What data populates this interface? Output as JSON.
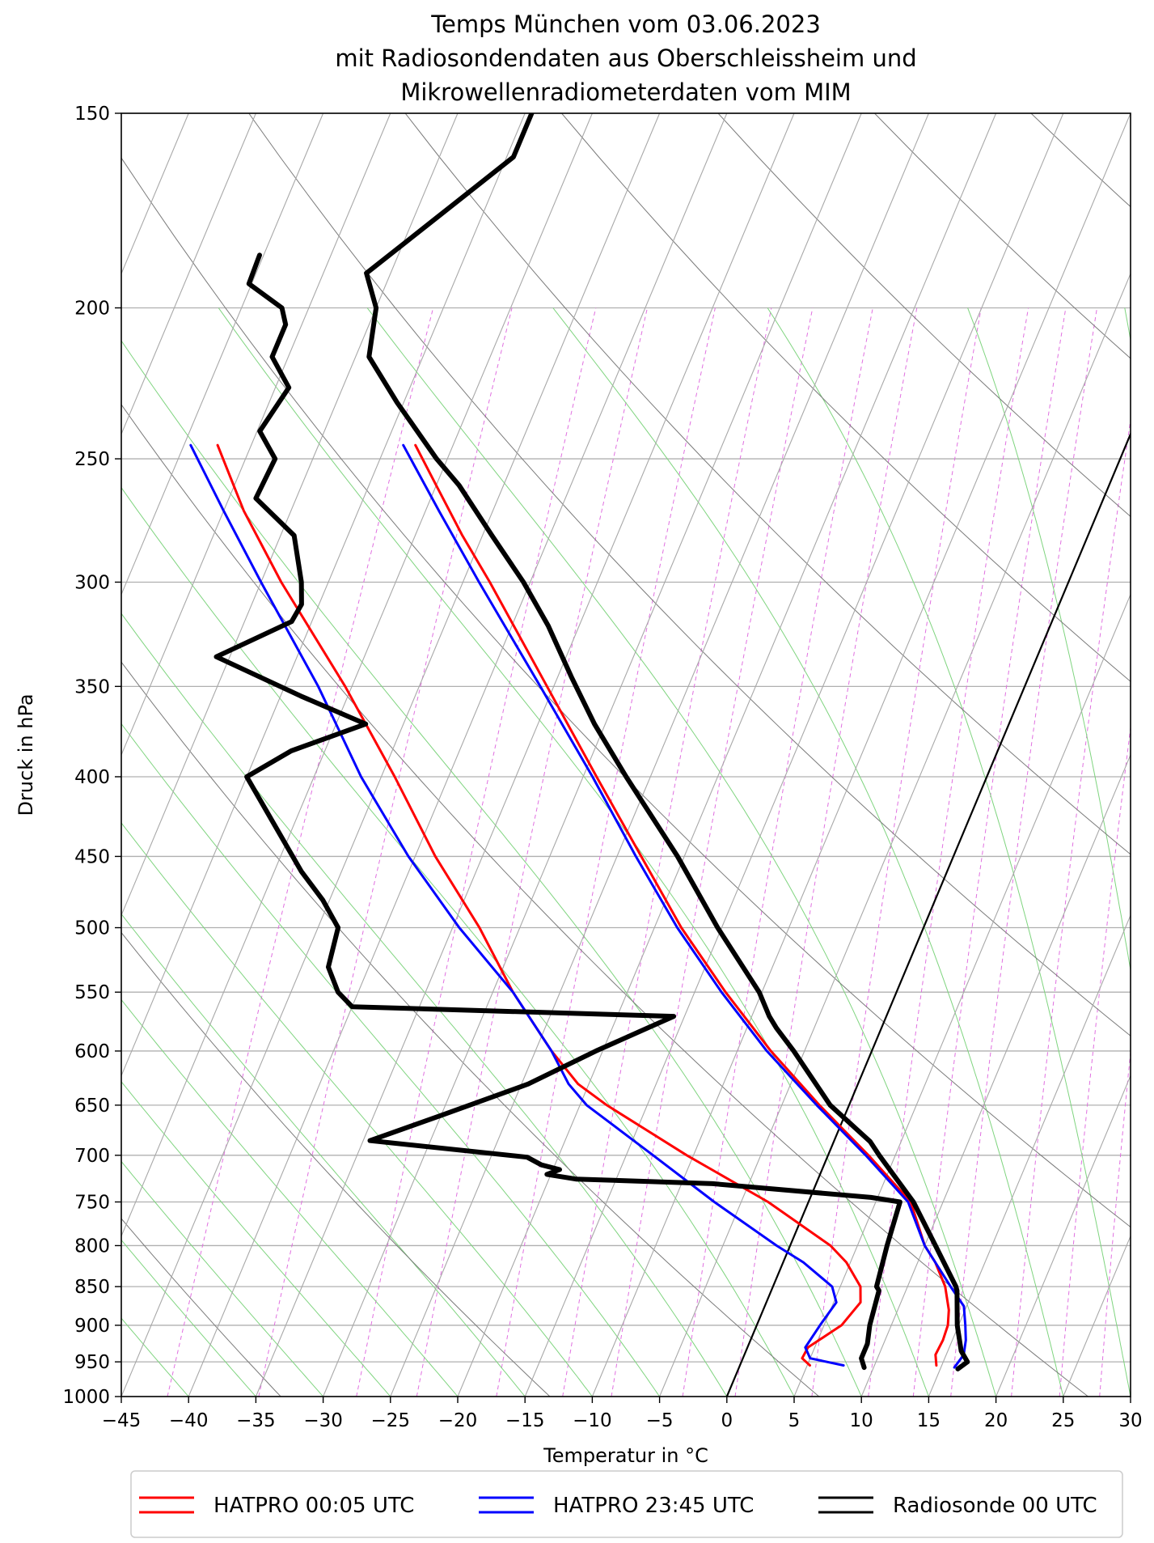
{
  "chart_data": {
    "type": "line",
    "subtype": "skew-t log-p diagram",
    "title_lines": [
      "Temps München vom 03.06.2023",
      "mit Radiosondendaten aus Oberschleissheim und",
      "Mikrowellenradiometerdaten vom MIM"
    ],
    "xlabel": "Temperatur in $^\\circ$C",
    "xlabel_display": "Temperatur in °C",
    "ylabel": "Druck in hPa",
    "xlim": [
      -45,
      30
    ],
    "ylim": [
      1000,
      150
    ],
    "y_scale": "log",
    "x_ticks": [
      -45,
      -40,
      -35,
      -30,
      -25,
      -20,
      -15,
      -10,
      -5,
      0,
      5,
      10,
      15,
      20,
      25,
      30
    ],
    "y_ticks": [
      150,
      200,
      250,
      300,
      350,
      400,
      450,
      500,
      550,
      600,
      650,
      700,
      750,
      800,
      850,
      900,
      950,
      1000
    ],
    "grid": true,
    "legend_position": "bottom-center",
    "series": [
      {
        "name": "HATPRO 00:05 UTC",
        "color": "#ff0000",
        "temperature": [
          {
            "p": 955,
            "t": 14.6
          },
          {
            "p": 940,
            "t": 14.2
          },
          {
            "p": 920,
            "t": 14.3
          },
          {
            "p": 900,
            "t": 14.2
          },
          {
            "p": 880,
            "t": 13.8
          },
          {
            "p": 850,
            "t": 12.8
          },
          {
            "p": 820,
            "t": 11.3
          },
          {
            "p": 800,
            "t": 10.0
          },
          {
            "p": 750,
            "t": 7.6
          },
          {
            "p": 700,
            "t": 3.0
          },
          {
            "p": 650,
            "t": -2.2
          },
          {
            "p": 600,
            "t": -7.5
          },
          {
            "p": 550,
            "t": -12.7
          },
          {
            "p": 500,
            "t": -18.0
          },
          {
            "p": 450,
            "t": -23.2
          },
          {
            "p": 400,
            "t": -29.0
          },
          {
            "p": 350,
            "t": -35.5
          },
          {
            "p": 300,
            "t": -43.0
          },
          {
            "p": 280,
            "t": -46.5
          },
          {
            "p": 260,
            "t": -50.0
          },
          {
            "p": 245,
            "t": -52.8
          }
        ],
        "dewpoint": [
          {
            "p": 955,
            "t": 5.2
          },
          {
            "p": 945,
            "t": 4.4
          },
          {
            "p": 930,
            "t": 4.5
          },
          {
            "p": 900,
            "t": 6.3
          },
          {
            "p": 870,
            "t": 7.0
          },
          {
            "p": 850,
            "t": 6.5
          },
          {
            "p": 820,
            "t": 4.7
          },
          {
            "p": 800,
            "t": 3.0
          },
          {
            "p": 750,
            "t": -3.0
          },
          {
            "p": 700,
            "t": -10.5
          },
          {
            "p": 650,
            "t": -18.0
          },
          {
            "p": 630,
            "t": -20.8
          },
          {
            "p": 600,
            "t": -23.8
          },
          {
            "p": 550,
            "t": -28.5
          },
          {
            "p": 500,
            "t": -33.0
          },
          {
            "p": 450,
            "t": -38.5
          },
          {
            "p": 400,
            "t": -44.0
          },
          {
            "p": 350,
            "t": -50.5
          },
          {
            "p": 300,
            "t": -58.5
          },
          {
            "p": 270,
            "t": -63.5
          },
          {
            "p": 245,
            "t": -67.5
          }
        ]
      },
      {
        "name": "HATPRO 23:45 UTC",
        "color": "#0000ff",
        "temperature": [
          {
            "p": 958,
            "t": 16.0
          },
          {
            "p": 940,
            "t": 16.3
          },
          {
            "p": 920,
            "t": 16.0
          },
          {
            "p": 900,
            "t": 15.5
          },
          {
            "p": 875,
            "t": 14.8
          },
          {
            "p": 850,
            "t": 13.2
          },
          {
            "p": 800,
            "t": 10.0
          },
          {
            "p": 750,
            "t": 7.4
          },
          {
            "p": 700,
            "t": 2.8
          },
          {
            "p": 650,
            "t": -2.4
          },
          {
            "p": 600,
            "t": -7.8
          },
          {
            "p": 550,
            "t": -13.0
          },
          {
            "p": 500,
            "t": -18.3
          },
          {
            "p": 450,
            "t": -23.6
          },
          {
            "p": 400,
            "t": -29.3
          },
          {
            "p": 350,
            "t": -36.0
          },
          {
            "p": 300,
            "t": -43.8
          },
          {
            "p": 270,
            "t": -49.0
          },
          {
            "p": 245,
            "t": -53.7
          }
        ],
        "dewpoint": [
          {
            "p": 955,
            "t": 7.7
          },
          {
            "p": 945,
            "t": 5.0
          },
          {
            "p": 930,
            "t": 4.3
          },
          {
            "p": 900,
            "t": 4.7
          },
          {
            "p": 870,
            "t": 5.2
          },
          {
            "p": 850,
            "t": 4.4
          },
          {
            "p": 820,
            "t": 1.5
          },
          {
            "p": 800,
            "t": -1.0
          },
          {
            "p": 750,
            "t": -7.0
          },
          {
            "p": 700,
            "t": -13.0
          },
          {
            "p": 650,
            "t": -19.5
          },
          {
            "p": 630,
            "t": -21.5
          },
          {
            "p": 600,
            "t": -23.8
          },
          {
            "p": 550,
            "t": -28.5
          },
          {
            "p": 500,
            "t": -34.5
          },
          {
            "p": 450,
            "t": -40.5
          },
          {
            "p": 400,
            "t": -46.5
          },
          {
            "p": 350,
            "t": -52.5
          },
          {
            "p": 300,
            "t": -60.0
          },
          {
            "p": 270,
            "t": -65.0
          },
          {
            "p": 245,
            "t": -69.5
          }
        ]
      },
      {
        "name": "Radiosonde 00 UTC",
        "color": "#000000",
        "temperature": [
          {
            "p": 960,
            "t": 16.3
          },
          {
            "p": 950,
            "t": 16.8
          },
          {
            "p": 935,
            "t": 16.0
          },
          {
            "p": 900,
            "t": 14.9
          },
          {
            "p": 855,
            "t": 13.8
          },
          {
            "p": 850,
            "t": 13.6
          },
          {
            "p": 800,
            "t": 10.8
          },
          {
            "p": 750,
            "t": 7.8
          },
          {
            "p": 700,
            "t": 3.8
          },
          {
            "p": 686,
            "t": 2.7
          },
          {
            "p": 650,
            "t": -1.4
          },
          {
            "p": 600,
            "t": -5.8
          },
          {
            "p": 580,
            "t": -7.8
          },
          {
            "p": 570,
            "t": -8.7
          },
          {
            "p": 550,
            "t": -10.2
          },
          {
            "p": 500,
            "t": -15.3
          },
          {
            "p": 450,
            "t": -20.5
          },
          {
            "p": 400,
            "t": -26.8
          },
          {
            "p": 370,
            "t": -30.8
          },
          {
            "p": 345,
            "t": -34.0
          },
          {
            "p": 320,
            "t": -37.3
          },
          {
            "p": 300,
            "t": -40.5
          },
          {
            "p": 280,
            "t": -44.3
          },
          {
            "p": 260,
            "t": -48.3
          },
          {
            "p": 250,
            "t": -50.8
          },
          {
            "p": 230,
            "t": -55.5
          },
          {
            "p": 215,
            "t": -59.0
          },
          {
            "p": 200,
            "t": -60.0
          },
          {
            "p": 190,
            "t": -61.8
          },
          {
            "p": 175,
            "t": -58.3
          },
          {
            "p": 160,
            "t": -54.5
          },
          {
            "p": 150,
            "t": -54.5
          }
        ],
        "dewpoint": [
          {
            "p": 958,
            "t": 9.3
          },
          {
            "p": 945,
            "t": 8.8
          },
          {
            "p": 925,
            "t": 8.8
          },
          {
            "p": 900,
            "t": 8.4
          },
          {
            "p": 855,
            "t": 8.0
          },
          {
            "p": 850,
            "t": 7.7
          },
          {
            "p": 800,
            "t": 7.2
          },
          {
            "p": 750,
            "t": 6.8
          },
          {
            "p": 745,
            "t": 4.5
          },
          {
            "p": 730,
            "t": -7.7
          },
          {
            "p": 725,
            "t": -18.0
          },
          {
            "p": 720,
            "t": -20.3
          },
          {
            "p": 715,
            "t": -19.5
          },
          {
            "p": 710,
            "t": -21.0
          },
          {
            "p": 702,
            "t": -22.3
          },
          {
            "p": 685,
            "t": -34.5
          },
          {
            "p": 660,
            "t": -30.0
          },
          {
            "p": 630,
            "t": -24.5
          },
          {
            "p": 600,
            "t": -20.5
          },
          {
            "p": 570,
            "t": -15.8
          },
          {
            "p": 562,
            "t": -40.0
          },
          {
            "p": 550,
            "t": -41.5
          },
          {
            "p": 530,
            "t": -43.0
          },
          {
            "p": 500,
            "t": -43.5
          },
          {
            "p": 480,
            "t": -45.5
          },
          {
            "p": 460,
            "t": -48.0
          },
          {
            "p": 400,
            "t": -55.0
          },
          {
            "p": 385,
            "t": -52.5
          },
          {
            "p": 370,
            "t": -47.8
          },
          {
            "p": 355,
            "t": -53.5
          },
          {
            "p": 335,
            "t": -61.0
          },
          {
            "p": 318,
            "t": -56.5
          },
          {
            "p": 310,
            "t": -56.3
          },
          {
            "p": 300,
            "t": -57.0
          },
          {
            "p": 280,
            "t": -59.0
          },
          {
            "p": 265,
            "t": -63.0
          },
          {
            "p": 250,
            "t": -62.8
          },
          {
            "p": 240,
            "t": -64.8
          },
          {
            "p": 225,
            "t": -64.0
          },
          {
            "p": 215,
            "t": -66.2
          },
          {
            "p": 205,
            "t": -66.2
          },
          {
            "p": 200,
            "t": -67.0
          },
          {
            "p": 193,
            "t": -70.2
          },
          {
            "p": 185,
            "t": -70.3
          }
        ]
      }
    ]
  }
}
